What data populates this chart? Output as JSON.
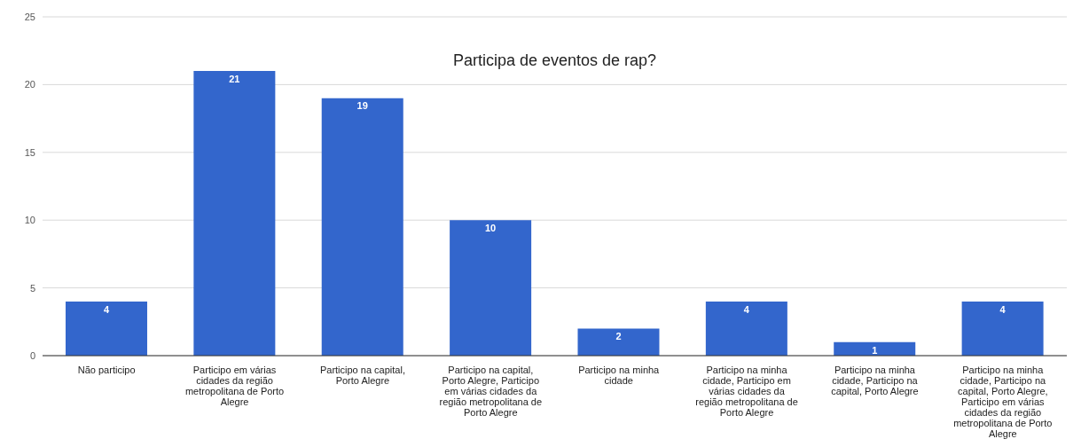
{
  "chart_data": {
    "type": "bar",
    "title": "Participa de eventos de rap?",
    "categories": [
      "Não participo",
      "Participo em várias cidades da região metropolitana de Porto Alegre",
      "Participo na capital, Porto Alegre",
      "Participo na capital, Porto Alegre, Participo em várias cidades da região metropolitana de Porto Alegre",
      "Participo na minha cidade",
      "Participo na minha cidade, Participo em várias cidades da região metropolitana de Porto Alegre",
      "Participo na minha cidade, Participo na capital, Porto Alegre",
      "Participo na minha cidade, Participo na capital, Porto Alegre, Participo em várias cidades da região metropolitana de Porto Alegre"
    ],
    "values": [
      4,
      21,
      19,
      10,
      2,
      4,
      1,
      4
    ],
    "color": "#3366cc",
    "ylim": [
      0,
      25
    ],
    "yticks": [
      0,
      5,
      10,
      15,
      20,
      25
    ],
    "grid": "y",
    "data_labels": true,
    "legend": false
  }
}
